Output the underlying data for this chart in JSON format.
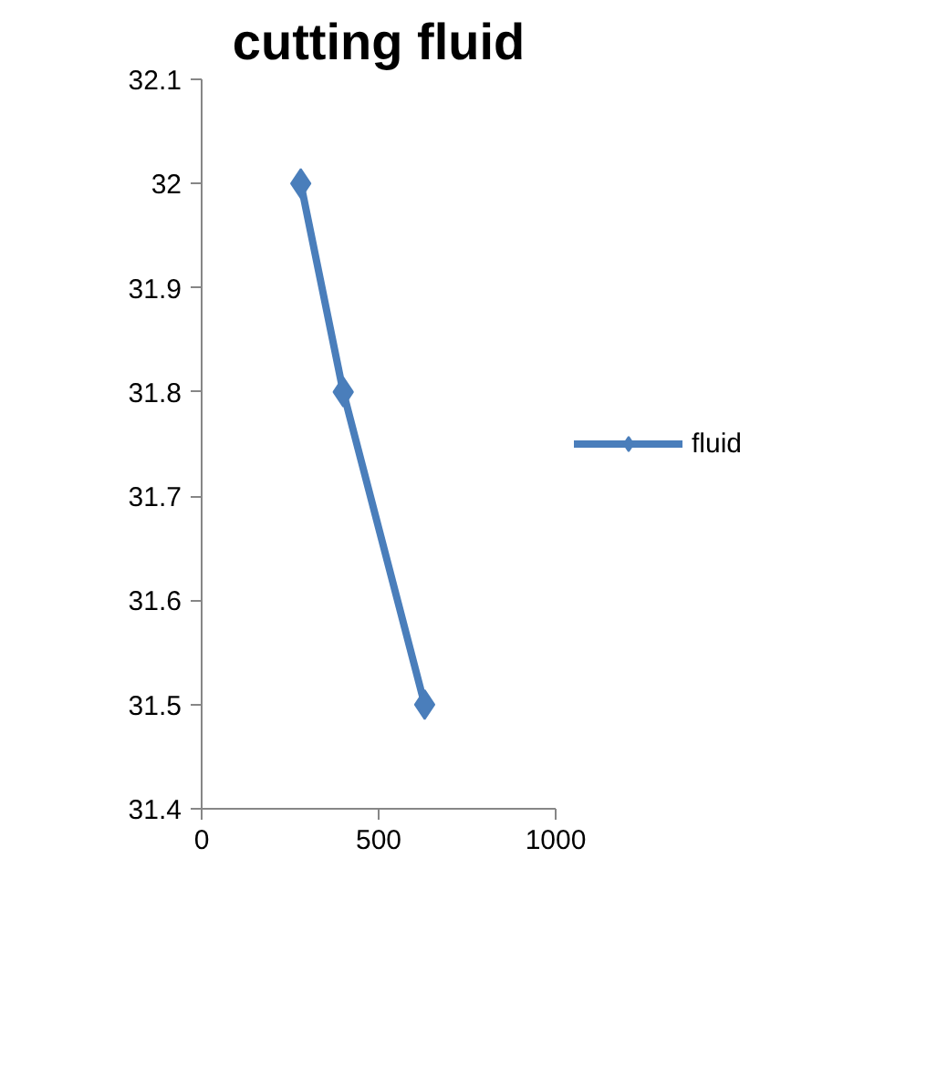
{
  "chart_data": {
    "type": "line",
    "title": "cutting fluid",
    "series": [
      {
        "name": "fluid",
        "color": "#4a7ebb",
        "x": [
          280,
          400,
          630
        ],
        "values": [
          32.0,
          31.8,
          31.5
        ]
      }
    ],
    "xlim": [
      0,
      1000
    ],
    "xticks": [
      0,
      500,
      1000
    ],
    "ylim": [
      31.4,
      32.1
    ],
    "yticks": [
      31.4,
      31.5,
      31.6,
      31.7,
      31.8,
      31.9,
      32,
      32.1
    ],
    "marker": "diamond",
    "line_style": "solid",
    "grid": false,
    "legend": "right"
  }
}
